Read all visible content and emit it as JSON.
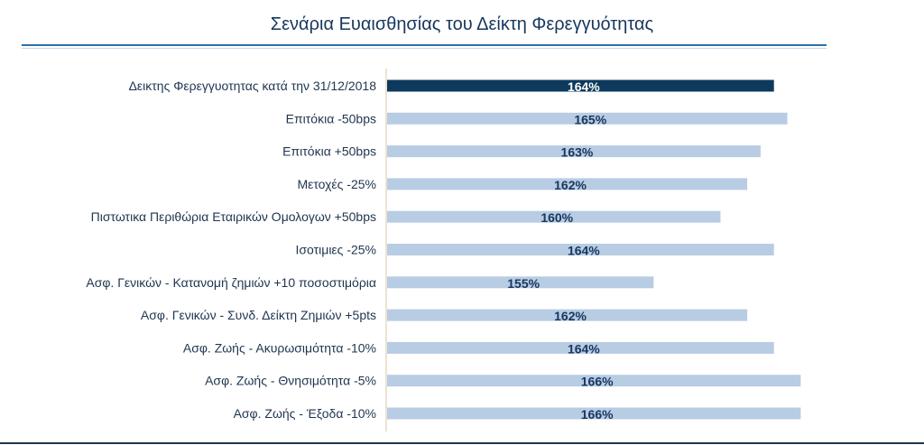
{
  "chart_data": {
    "type": "bar",
    "orientation": "horizontal",
    "title": "Σενάρια  Ευαισθησίας του Δείκτη Φερεγγυότητας",
    "categories": [
      "Δεικτης Φερεγγυοτητας κατά την 31/12/2018",
      "Επιτόκια -50bps",
      "Επιτόκια +50bps",
      "Μετοχές -25%",
      "Πιστωτικα Περιθώρια Εταιρικών Ομολογων +50bps",
      "Ισοτιμιες -25%",
      "Ασφ. Γενικών -  Κατανομή ζημιών +10 ποσοστιμόρια",
      "Ασφ. Γενικών -  Συνδ. Δείκτη Ζημιών  +5pts",
      "Ασφ. Ζωής -  Ακυρωσιμότητα -10%",
      "Ασφ. Ζωής -  Θνησιμότητα -5%",
      "Ασφ. Ζωής -  Έξοδα -10%"
    ],
    "values": [
      164,
      165,
      163,
      162,
      160,
      164,
      155,
      162,
      164,
      166,
      166
    ],
    "value_labels": [
      "164%",
      "165%",
      "163%",
      "162%",
      "160%",
      "164%",
      "155%",
      "162%",
      "164%",
      "166%",
      "166%"
    ],
    "highlight_index": 0,
    "colors": {
      "highlight": "#0d3a5c",
      "bar": "#b8cce4",
      "highlight_text": "#ffffff",
      "text": "#17375e",
      "axis": "#d8c9a0"
    },
    "xlim": [
      135,
      168
    ],
    "grid": false,
    "legend": "none"
  }
}
